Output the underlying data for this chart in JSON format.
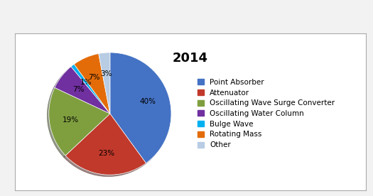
{
  "title": "2014",
  "title_fontsize": 13,
  "title_fontweight": "bold",
  "labels": [
    "Point Absorber",
    "Attenuator",
    "Oscillating Wave Surge Converter",
    "Oscillating Water Column",
    "Bulge Wave",
    "Rotating Mass",
    "Other"
  ],
  "values": [
    40,
    23,
    19,
    7,
    1,
    7,
    3
  ],
  "colors": [
    "#4472C4",
    "#C0392B",
    "#7F9F3F",
    "#7030A0",
    "#00B0F0",
    "#E36C09",
    "#B8CCE4"
  ],
  "startangle": 90,
  "pct_labels": [
    "40%",
    "23%",
    "19%",
    "7%",
    "1%",
    "7%",
    "3%"
  ],
  "background_color": "#f2f2f2",
  "inner_background": "#ffffff",
  "legend_fontsize": 7.5,
  "figsize": [
    5.25,
    2.76
  ],
  "dpi": 100,
  "shadow": true
}
